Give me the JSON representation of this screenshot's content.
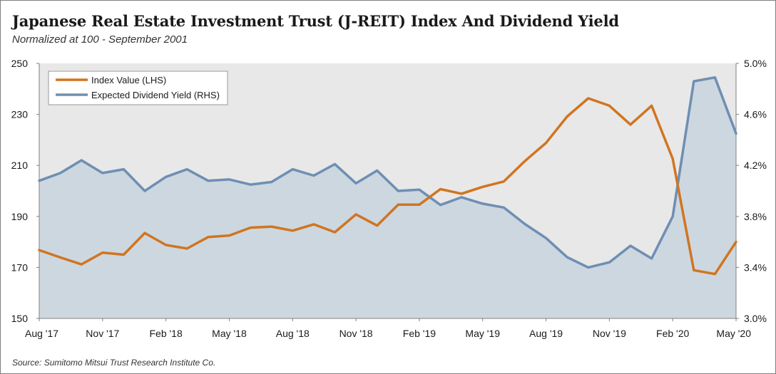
{
  "title": "Japanese Real Estate Investment Trust (J-REIT) Index And Dividend Yield",
  "subtitle": "Normalized at 100 - September 2001",
  "source": "Source: Sumitomo Mitsui Trust Research Institute Co.",
  "colors": {
    "index": "#d07521",
    "yield": "#6e8fb3",
    "plot_bg": "#e8e8e8",
    "yield_area": "#cdd7e0"
  },
  "chart_data": {
    "type": "line",
    "x": [
      "Aug '17",
      "Sep '17",
      "Oct '17",
      "Nov '17",
      "Dec '17",
      "Jan '18",
      "Feb '18",
      "Mar '18",
      "Apr '18",
      "May '18",
      "Jun '18",
      "Jul '18",
      "Aug '18",
      "Sep '18",
      "Oct '18",
      "Nov '18",
      "Dec '18",
      "Jan '19",
      "Feb '19",
      "Mar '19",
      "Apr '19",
      "May '19",
      "Jun '19",
      "Jul '19",
      "Aug '19",
      "Sep '19",
      "Oct '19",
      "Nov '19",
      "Dec '19",
      "Jan '20",
      "Feb '20",
      "Mar '20",
      "Apr '20",
      "May '20"
    ],
    "x_tick_labels": [
      "Aug '17",
      "Nov '17",
      "Feb '18",
      "May '18",
      "Aug '18",
      "Nov '18",
      "Feb '19",
      "May '19",
      "Aug '19",
      "Nov '19",
      "Feb '20",
      "May '20"
    ],
    "left_axis": {
      "ylim": [
        150,
        250
      ],
      "ticks": [
        150,
        170,
        190,
        210,
        230,
        250
      ],
      "tick_labels": [
        "150",
        "170",
        "190",
        "210",
        "230",
        "250"
      ]
    },
    "right_axis": {
      "ylim": [
        3.0,
        5.0
      ],
      "ticks": [
        3.0,
        3.4,
        3.8,
        4.2,
        4.6,
        5.0
      ],
      "tick_labels": [
        "3.0%",
        "3.4%",
        "3.8%",
        "4.2%",
        "4.6%",
        "5.0%"
      ]
    },
    "grid": false,
    "legend_position": "top-left",
    "series": [
      {
        "name": "Index Value (LHS)",
        "axis": "left",
        "style": "line",
        "values": [
          176.8,
          173.9,
          171.2,
          175.8,
          175.0,
          183.5,
          178.8,
          177.4,
          181.9,
          182.5,
          185.6,
          186.0,
          184.4,
          186.9,
          183.8,
          190.8,
          186.4,
          194.6,
          194.6,
          200.7,
          198.9,
          201.6,
          203.7,
          211.7,
          218.8,
          229.2,
          236.3,
          233.4,
          226.0,
          233.4,
          212.6,
          168.9,
          167.4,
          180.0
        ]
      },
      {
        "name": "Expected Dividend Yield (RHS)",
        "axis": "right",
        "style": "line-with-area",
        "values": [
          4.08,
          4.14,
          4.24,
          4.14,
          4.17,
          4.0,
          4.11,
          4.17,
          4.08,
          4.09,
          4.05,
          4.07,
          4.17,
          4.12,
          4.21,
          4.06,
          4.16,
          4.0,
          4.01,
          3.89,
          3.95,
          3.9,
          3.87,
          3.74,
          3.63,
          3.48,
          3.4,
          3.44,
          3.57,
          3.47,
          3.8,
          4.86,
          4.89,
          4.45
        ]
      }
    ]
  }
}
